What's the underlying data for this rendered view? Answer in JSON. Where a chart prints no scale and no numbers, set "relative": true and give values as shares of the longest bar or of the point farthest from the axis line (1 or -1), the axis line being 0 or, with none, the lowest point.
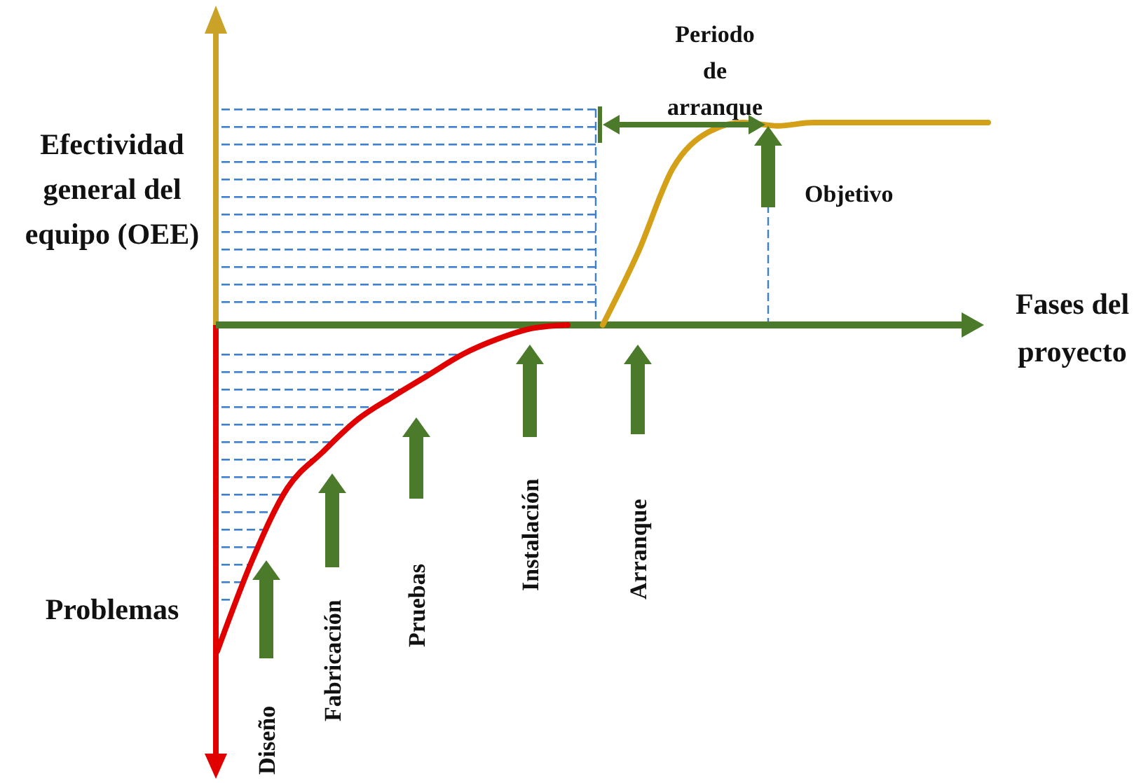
{
  "chart_data": {
    "type": "line",
    "relative": true,
    "ylabel": "Efectividad general del equipo (OEE)",
    "xlabel": "Fases del proyecto",
    "categories": [
      null,
      null,
      null,
      null,
      null,
      null,
      null,
      null,
      null,
      null,
      null,
      null,
      null,
      null,
      null,
      null,
      null,
      null,
      null,
      null,
      null,
      null,
      null
    ],
    "series": [
      {
        "color": "#e00000",
        "values": [
          -1.0,
          -0.72,
          -0.5,
          -0.39,
          -0.29,
          -0.22,
          -0.155,
          -0.09,
          -0.043,
          -0.01,
          0,
          null,
          null,
          null,
          null,
          null,
          null,
          null,
          null,
          null,
          null,
          null,
          null
        ]
      },
      {
        "color": "#d4a017",
        "values": [
          null,
          null,
          null,
          null,
          null,
          null,
          null,
          null,
          null,
          null,
          null,
          0,
          0.22,
          0.48,
          0.59,
          0.62,
          0.61,
          0.62,
          0.62,
          0.62,
          0.62,
          0.62,
          0.62
        ]
      }
    ],
    "annotations": [
      "Problemas",
      "Periodo de arranque",
      "Objetivo",
      "Diseño",
      "Fabricación",
      "Pruebas",
      "Instalación",
      "Arranque"
    ],
    "ref_lines": [
      {
        "axis": "y",
        "value": 0,
        "color": "#4a7a2a",
        "line_style": "solid"
      }
    ],
    "grid": false,
    "legend": false,
    "marker": "none",
    "line_style": "solid"
  }
}
